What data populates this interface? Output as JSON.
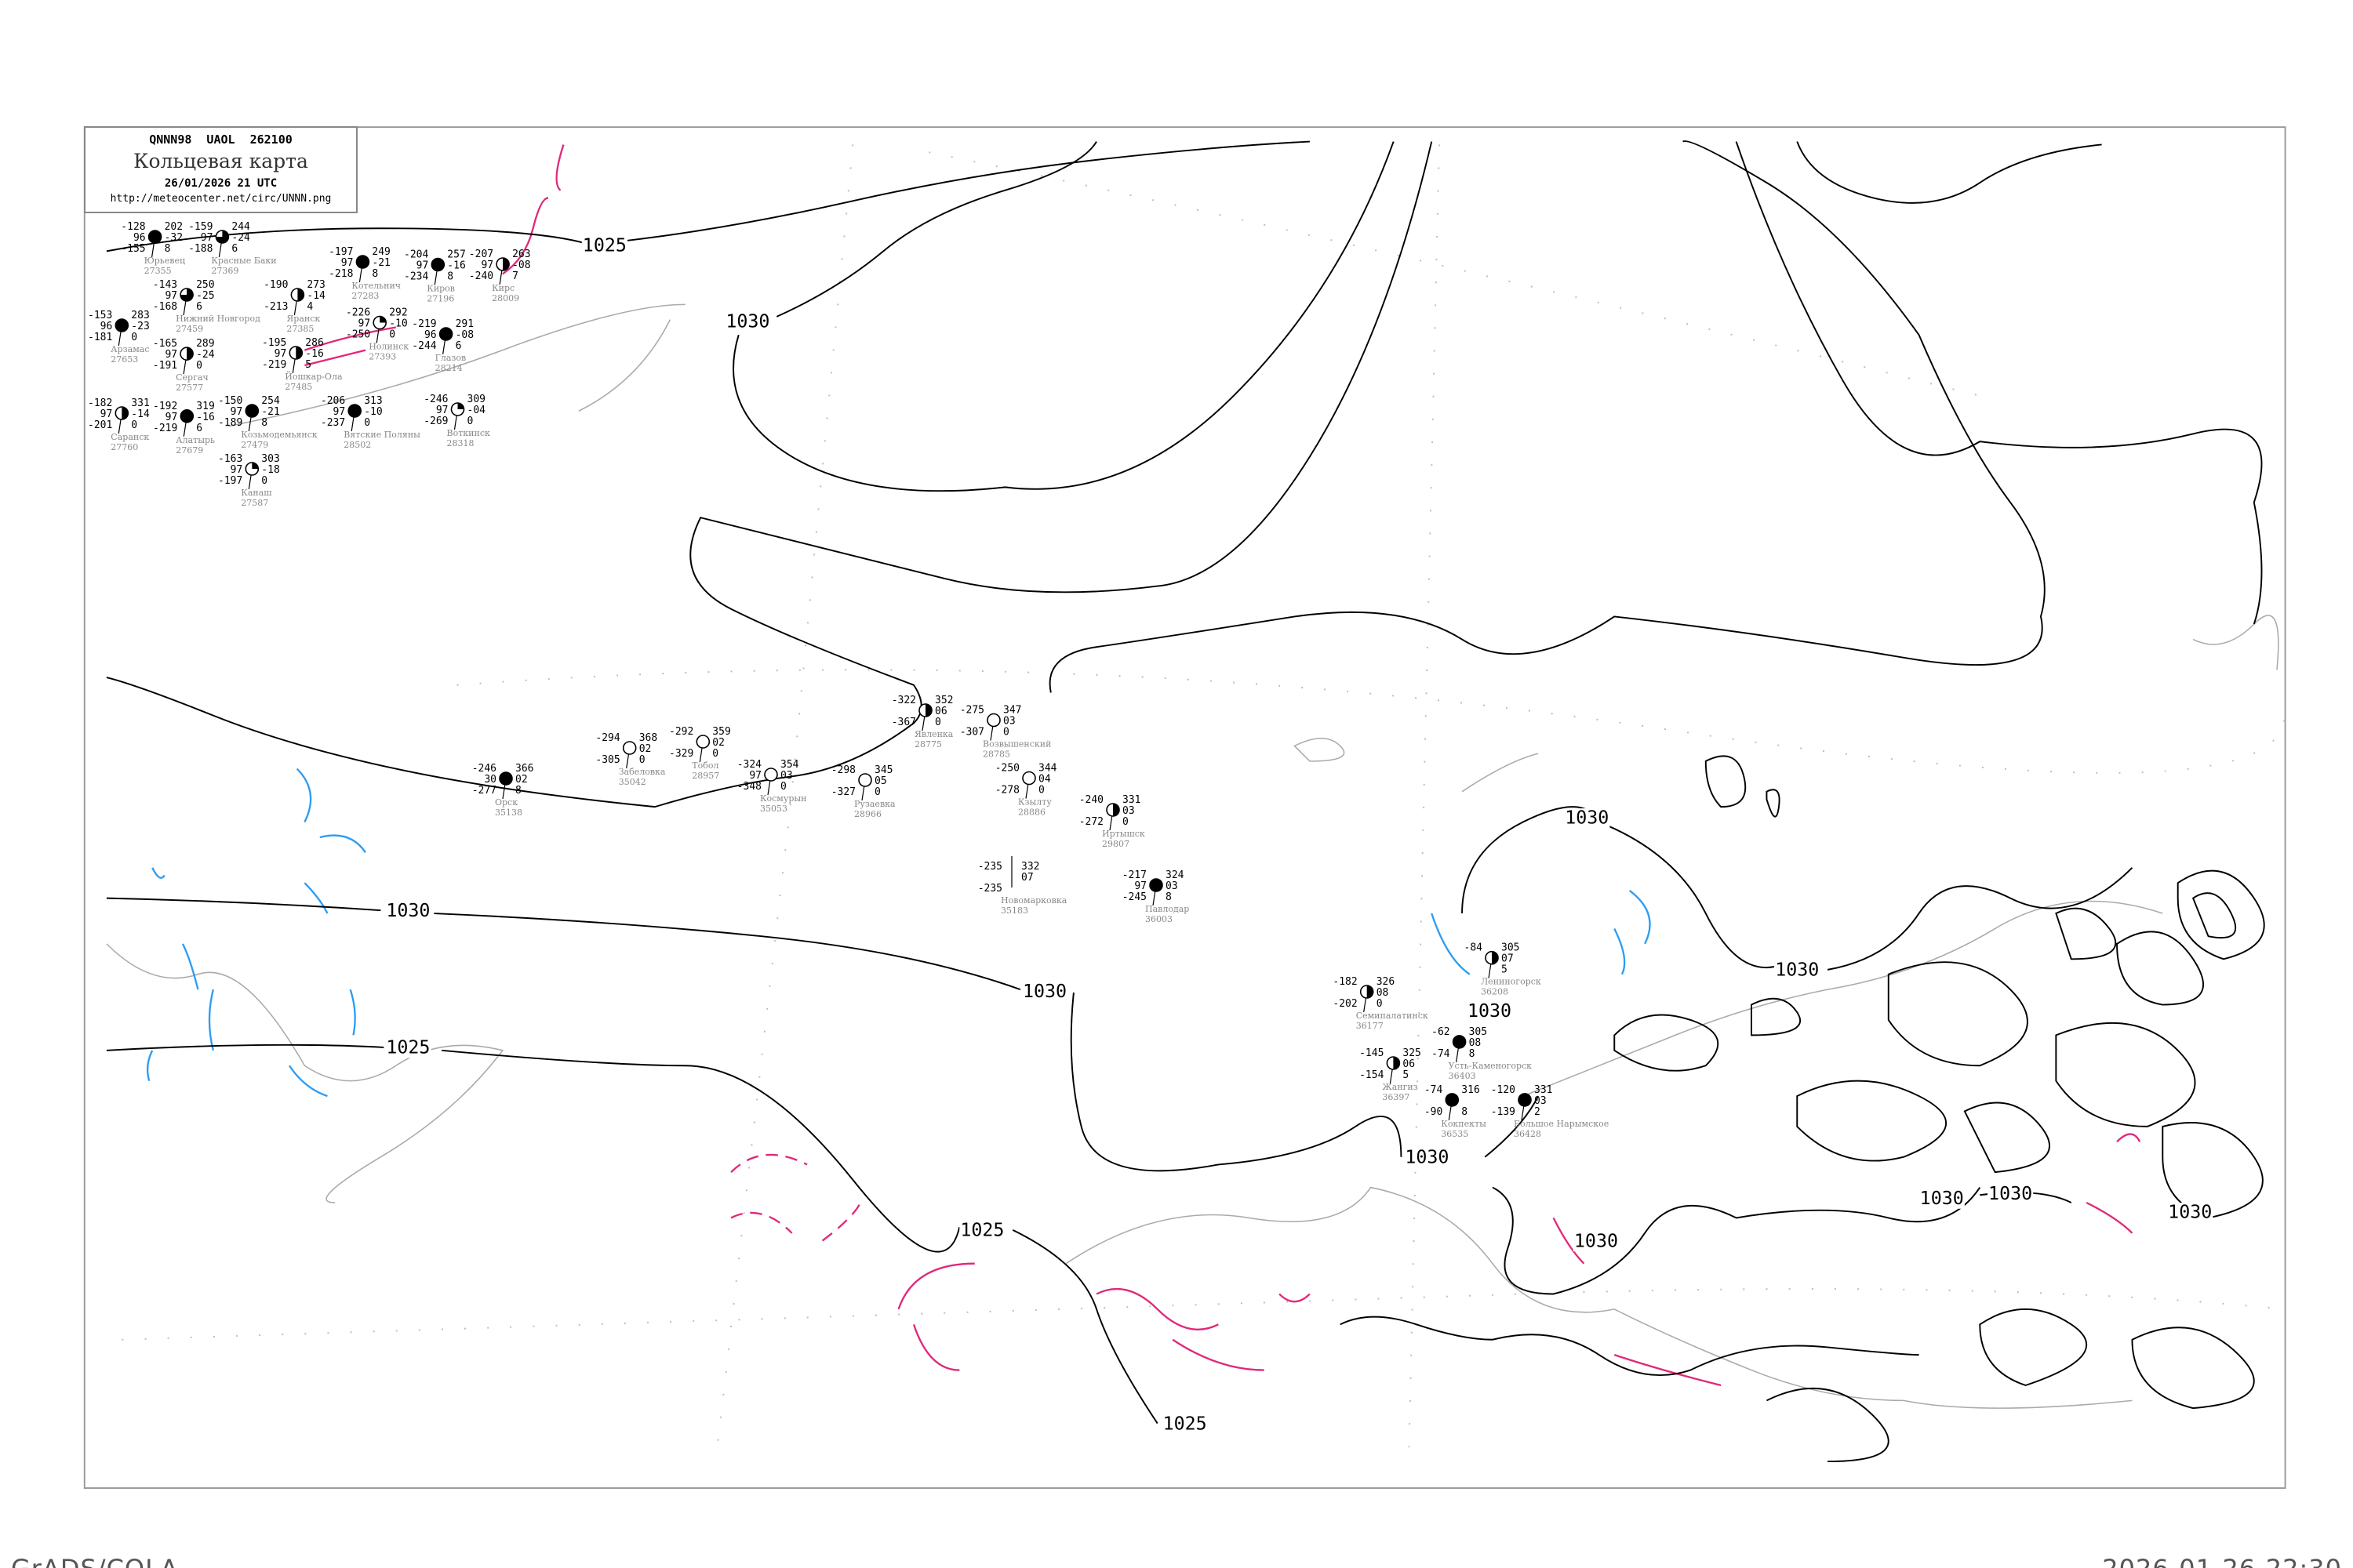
{
  "header": {
    "code": "QNNN98  UAOL  262100",
    "title": "Кольцевая карта",
    "date": "26/01/2026 21 UTC",
    "url": "http://meteocenter.net/circ/UNNN.png"
  },
  "footer": {
    "left": "GrADS/COLA",
    "right": "2026-01-26-22:30"
  },
  "colors": {
    "isobar": "#000000",
    "isotherm_negative": "#e0287a",
    "isotherm_blue": "#2a9df4",
    "coastline": "#aaaaaa",
    "precip_marker": "#3a8ee6",
    "fog_marker": "#f7f39a"
  },
  "isobar_labels": [
    "1025",
    "1030",
    "1030",
    "1030",
    "1025",
    "1030",
    "1025",
    "1030",
    "1030",
    "1030",
    "1030",
    "1030",
    "1030",
    "1030",
    "1025"
  ],
  "stations": [
    {
      "name": "Юрьевец",
      "id": "27355",
      "t": "-128",
      "vis": "96",
      "td": "-155",
      "p": "202",
      "dp": "-32",
      "x": "8",
      "cover": "full"
    },
    {
      "name": "Нижний Новгород",
      "id": "27459",
      "t": "-143",
      "vis": "97",
      "td": "-168",
      "p": "250",
      "dp": "-25",
      "x": "6",
      "cover": "three-quarter"
    },
    {
      "name": "Красные Баки",
      "id": "27369",
      "t": "-159",
      "vis": "97",
      "td": "-188",
      "p": "244",
      "dp": "-24",
      "x": "6",
      "cover": "three-quarter"
    },
    {
      "name": "Арзамас",
      "id": "27653",
      "t": "-153",
      "vis": "96",
      "td": "-181",
      "p": "283",
      "dp": "-23",
      "x": "0",
      "cover": "full"
    },
    {
      "name": "Сергач",
      "id": "27577",
      "t": "-165",
      "vis": "97",
      "td": "-191",
      "p": "289",
      "dp": "-24",
      "x": "0",
      "cover": "half"
    },
    {
      "name": "Козьмодемьянск",
      "id": "27479",
      "t": "-150",
      "vis": "97",
      "td": "-189",
      "p": "254",
      "dp": "-21",
      "x": "8",
      "cover": "full"
    },
    {
      "name": "Йошкар-Ола",
      "id": "27485",
      "t": "-195",
      "vis": "97",
      "td": "-219",
      "p": "286",
      "dp": "-16",
      "x": "5",
      "cover": "half"
    },
    {
      "name": "Яранск",
      "id": "27385",
      "t": "-190",
      "vis": "",
      "td": "-213",
      "p": "273",
      "dp": "-14",
      "x": "4",
      "cover": "half"
    },
    {
      "name": "Котельнич",
      "id": "27283",
      "t": "-197",
      "vis": "97",
      "td": "-218",
      "p": "249",
      "dp": "-21",
      "x": "8",
      "cover": "full"
    },
    {
      "name": "Киров",
      "id": "27196",
      "t": "-204",
      "vis": "97",
      "td": "-234",
      "p": "257",
      "dp": "-16",
      "x": "8",
      "cover": "full"
    },
    {
      "name": "Нолинск",
      "id": "27393",
      "t": "-226",
      "vis": "97",
      "td": "-250",
      "p": "292",
      "dp": "-10",
      "x": "0",
      "cover": "quarter"
    },
    {
      "name": "Глазов",
      "id": "28214",
      "t": "-219",
      "vis": "96",
      "td": "-244",
      "p": "291",
      "dp": "-08",
      "x": "6",
      "cover": "full"
    },
    {
      "name": "Кирс",
      "id": "28009",
      "t": "-207",
      "vis": "97",
      "td": "-240",
      "p": "263",
      "dp": "-08",
      "x": "7",
      "cover": "half"
    },
    {
      "name": "Канаш",
      "id": "27587",
      "t": "-163",
      "vis": "97",
      "td": "-197",
      "p": "303",
      "dp": "-18",
      "x": "0",
      "cover": "quarter"
    },
    {
      "name": "Алатырь",
      "id": "27679",
      "t": "-192",
      "vis": "97",
      "td": "-219",
      "p": "319",
      "dp": "-16",
      "x": "6",
      "cover": "full"
    },
    {
      "name": "Саранск",
      "id": "27760",
      "t": "-182",
      "vis": "97",
      "td": "-201",
      "p": "331",
      "dp": "-14",
      "x": "0",
      "cover": "half"
    },
    {
      "name": "Вятские Поляны",
      "id": "28502",
      "t": "-206",
      "vis": "97",
      "td": "-237",
      "p": "313",
      "dp": "-10",
      "x": "0",
      "cover": "full"
    },
    {
      "name": "Воткинск",
      "id": "28318",
      "t": "-246",
      "vis": "97",
      "td": "-269",
      "p": "309",
      "dp": "-04",
      "x": "0",
      "cover": "quarter"
    },
    {
      "name": "Орск",
      "id": "35138",
      "t": "-246",
      "vis": "30",
      "td": "-277",
      "p": "366",
      "dp": "02",
      "x": "8",
      "cover": "full"
    },
    {
      "name": "Забеловка",
      "id": "35042",
      "t": "-294",
      "vis": "",
      "td": "-305",
      "p": "368",
      "dp": "02",
      "x": "0",
      "cover": "empty"
    },
    {
      "name": "Тобол",
      "id": "28957",
      "t": "-292",
      "vis": "",
      "td": "-329",
      "p": "359",
      "dp": "02",
      "x": "0",
      "cover": "empty"
    },
    {
      "name": "Космурын",
      "id": "35053",
      "t": "-324",
      "vis": "97",
      "td": "-348",
      "p": "354",
      "dp": "03",
      "x": "0",
      "cover": "empty"
    },
    {
      "name": "Рузаевка",
      "id": "28966",
      "t": "-298",
      "vis": "",
      "td": "-327",
      "p": "345",
      "dp": "05",
      "x": "0",
      "cover": "empty"
    },
    {
      "name": "Явленка",
      "id": "28775",
      "t": "-322",
      "vis": "",
      "td": "-367",
      "p": "352",
      "dp": "06",
      "x": "0",
      "cover": "half"
    },
    {
      "name": "Возвышенский",
      "id": "28785",
      "t": "-275",
      "vis": "",
      "td": "-307",
      "p": "347",
      "dp": "03",
      "x": "0",
      "cover": "empty"
    },
    {
      "name": "Кзылту",
      "id": "28886",
      "t": "-250",
      "vis": "",
      "td": "-278",
      "p": "344",
      "dp": "04",
      "x": "0",
      "cover": "empty"
    },
    {
      "name": "Иртышск",
      "id": "29807",
      "t": "-240",
      "vis": "",
      "td": "-272",
      "p": "331",
      "dp": "03",
      "x": "0",
      "cover": "half"
    },
    {
      "name": "Новомарковка",
      "id": "35183",
      "t": "-235",
      "vis": "",
      "td": "-235",
      "p": "332",
      "dp": "07",
      "x": "",
      "cover": "none"
    },
    {
      "name": "Павлодар",
      "id": "36003",
      "t": "-217",
      "vis": "97",
      "td": "-245",
      "p": "324",
      "dp": "03",
      "x": "8",
      "cover": "full"
    },
    {
      "name": "Семипалатинск",
      "id": "36177",
      "t": "-182",
      "vis": "",
      "td": "-202",
      "p": "326",
      "dp": "08",
      "x": "0",
      "cover": "half"
    },
    {
      "name": "Усть-Каменогорск",
      "id": "36403",
      "t": "-62",
      "vis": "",
      "td": "-74",
      "p": "305",
      "dp": "08",
      "x": "8",
      "cover": "full"
    },
    {
      "name": "Лениногорск",
      "id": "36208",
      "t": "-84",
      "vis": "",
      "td": "",
      "p": "305",
      "dp": "07",
      "x": "5",
      "cover": "half"
    },
    {
      "name": "Жангиз",
      "id": "36397",
      "t": "-145",
      "vis": "",
      "td": "-154",
      "p": "325",
      "dp": "06",
      "x": "5",
      "cover": "half"
    },
    {
      "name": "Кокпекты",
      "id": "36535",
      "t": "-74",
      "vis": "",
      "td": "-90",
      "p": "316",
      "dp": "",
      "x": "8",
      "cover": "full"
    },
    {
      "name": "Большое Нарымское",
      "id": "36428",
      "t": "-120",
      "vis": "",
      "td": "-139",
      "p": "331",
      "dp": "03",
      "x": "2",
      "cover": "full"
    }
  ]
}
